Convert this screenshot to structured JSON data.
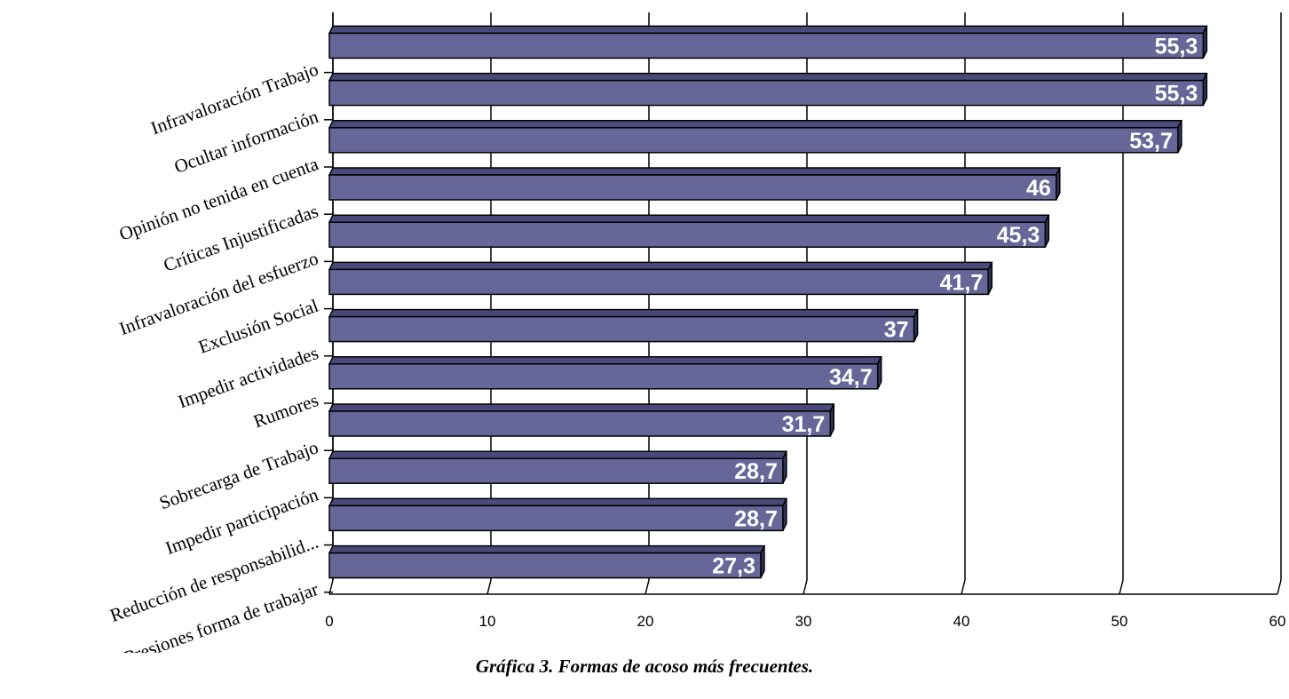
{
  "caption": "Gráfica 3. Formas de acoso más frecuentes.",
  "chart_data": {
    "type": "bar",
    "orientation": "horizontal",
    "style": "3d",
    "categories": [
      "Infravaloración Trabajo",
      "Ocultar información",
      "Opinión no tenida en cuenta",
      "Críticas Injustificadas",
      "Infravaloración del esfuerzo",
      "Exclusión Social",
      "Impedir actividades",
      "Rumores",
      "Sobrecarga de Trabajo",
      "Impedir participación",
      "Reducción de responsabilid...",
      "Presiones forma de trabajar"
    ],
    "values": [
      55.3,
      55.3,
      53.7,
      46,
      45.3,
      41.7,
      37,
      34.7,
      31.7,
      28.7,
      28.7,
      27.3
    ],
    "data_labels": [
      "55,3",
      "55,3",
      "53,7",
      "46",
      "45,3",
      "41,7",
      "37",
      "34,7",
      "31,7",
      "28,7",
      "28,7",
      "27,3"
    ],
    "x_ticks": [
      "0",
      "10",
      "20",
      "30",
      "40",
      "50",
      "60"
    ],
    "xlim": [
      0,
      60
    ],
    "grid": true,
    "colors": {
      "bar_front": "#666699",
      "bar_top": "#4a4a7a",
      "bar_side": "#33335c"
    }
  }
}
